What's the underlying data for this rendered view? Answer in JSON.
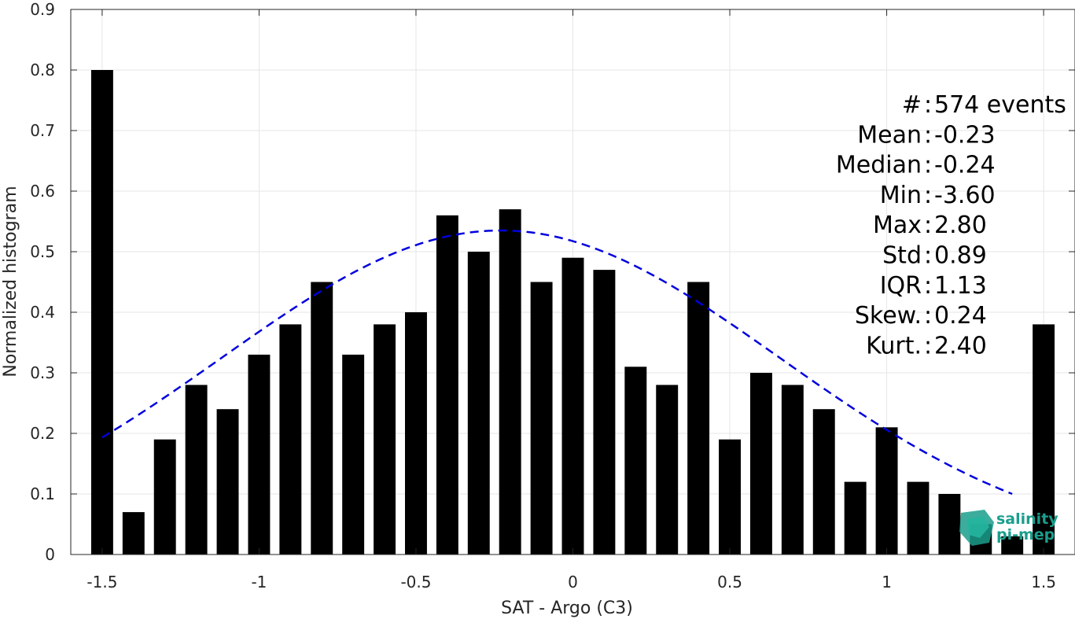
{
  "chart_data": {
    "type": "bar",
    "xlabel": "SAT - Argo (C3)",
    "ylabel": "Normalized histogram",
    "xlim": [
      -1.6,
      1.6
    ],
    "ylim": [
      0,
      0.9
    ],
    "xticks": [
      -1.5,
      -1,
      -0.5,
      0,
      0.5,
      1,
      1.5
    ],
    "xtick_labels": [
      "-1.5",
      "-1",
      "-0.5",
      "0",
      "0.5",
      "1",
      "1.5"
    ],
    "yticks": [
      0,
      0.1,
      0.2,
      0.3,
      0.4,
      0.5,
      0.6,
      0.7,
      0.8,
      0.9
    ],
    "ytick_labels": [
      "0",
      "0.1",
      "0.2",
      "0.3",
      "0.4",
      "0.5",
      "0.6",
      "0.7",
      "0.8",
      "0.9"
    ],
    "grid": true,
    "bar_color": "#000000",
    "bar_width": 0.07,
    "bars": {
      "x": [
        -1.5,
        -1.4,
        -1.3,
        -1.2,
        -1.1,
        -1.0,
        -0.9,
        -0.8,
        -0.7,
        -0.6,
        -0.5,
        -0.4,
        -0.3,
        -0.2,
        -0.1,
        0.0,
        0.1,
        0.2,
        0.3,
        0.4,
        0.5,
        0.6,
        0.7,
        0.8,
        0.9,
        1.0,
        1.1,
        1.2,
        1.3,
        1.4,
        1.5
      ],
      "values": [
        0.8,
        0.07,
        0.19,
        0.28,
        0.24,
        0.33,
        0.38,
        0.45,
        0.33,
        0.38,
        0.4,
        0.56,
        0.5,
        0.57,
        0.45,
        0.49,
        0.47,
        0.31,
        0.28,
        0.45,
        0.19,
        0.3,
        0.28,
        0.24,
        0.12,
        0.21,
        0.12,
        0.1,
        0.05,
        0.03,
        0.38
      ]
    },
    "fit_curve": {
      "type": "gaussian",
      "style": "dashed",
      "color": "#0000dd",
      "mean": -0.23,
      "std": 0.89,
      "peak": 0.535,
      "x_range": [
        -1.5,
        1.4
      ]
    },
    "stats": [
      "#  : 574 events",
      "Mean : -0.23",
      "Median : -0.24",
      "Min : -3.60",
      "Max : 2.80",
      "Std : 0.89",
      "IQR : 1.13",
      "Skew. : 0.24",
      "Kurt. : 2.40"
    ]
  },
  "logo": {
    "line1": "salinity",
    "line2": "pi-mep",
    "color": "#1a9e8c"
  }
}
